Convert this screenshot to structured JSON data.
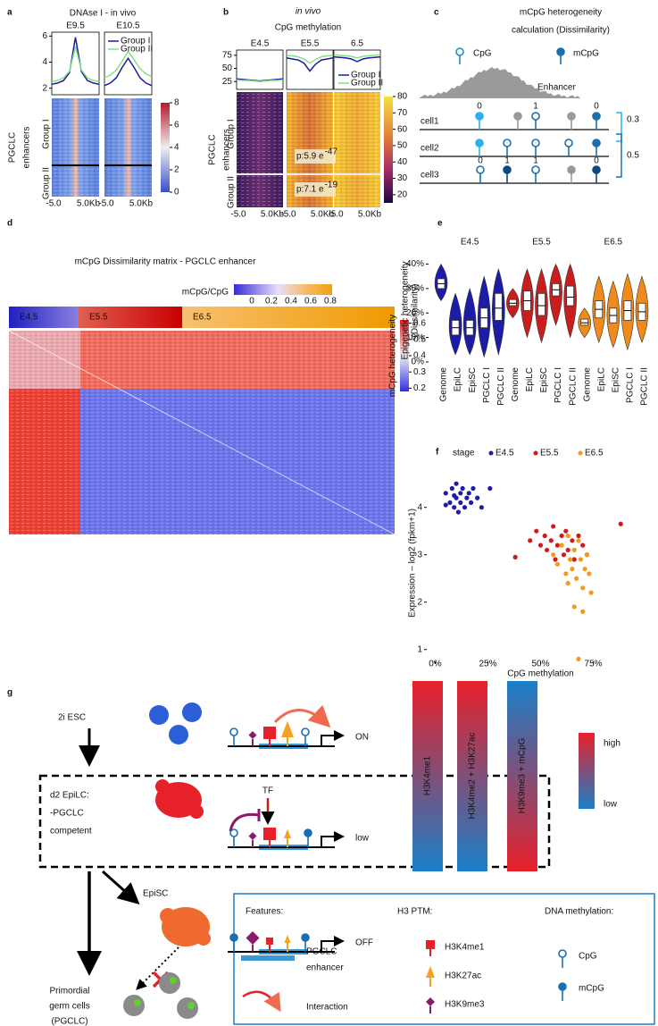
{
  "a": {
    "label": "a",
    "title": "DNAse I - in vivo",
    "ylabel": [
      "PGCLC",
      "enhancers"
    ],
    "group_labels": [
      "Group I",
      "Group II"
    ],
    "legend": [
      {
        "name": "Group I",
        "color": "#1c1c9c"
      },
      {
        "name": "Group II",
        "color": "#86e086"
      }
    ],
    "ylim": [
      1.5,
      6.3
    ],
    "yticks": [
      2,
      4,
      6
    ],
    "xticks": [
      "-5.0",
      "5.0Kb"
    ],
    "clim": [
      0,
      8
    ],
    "colorbar_ticks": [
      0,
      2,
      4,
      6,
      8
    ],
    "panels": [
      {
        "title": "E9.5",
        "values": [
          [
            2.3,
            2.4,
            2.6,
            3.2,
            5.9,
            3.3,
            2.6,
            2.4,
            2.3
          ],
          [
            2.5,
            2.6,
            2.8,
            3.3,
            5.2,
            3.4,
            2.8,
            2.6,
            2.5
          ]
        ]
      },
      {
        "title": "E10.5",
        "values": [
          [
            2.2,
            2.4,
            2.8,
            3.6,
            4.3,
            3.6,
            2.8,
            2.4,
            2.2
          ],
          [
            2.8,
            3.0,
            3.4,
            4.1,
            4.8,
            4.2,
            3.5,
            3.1,
            2.9
          ]
        ]
      }
    ]
  },
  "b": {
    "label": "b",
    "title": [
      "in vivo",
      "CpG methylation"
    ],
    "ylabel": [
      "PGCLC",
      "enhancers"
    ],
    "group_labels": [
      "Group I",
      "Group II"
    ],
    "legend": [
      {
        "name": "Group I",
        "color": "#1c1c9c"
      },
      {
        "name": "Group II",
        "color": "#86e086"
      }
    ],
    "ylim": [
      10,
      85
    ],
    "yticks": [
      25,
      50,
      75
    ],
    "xticks": [
      "-5.0",
      "5.0Kb"
    ],
    "clim": [
      15,
      80
    ],
    "colorbar_ticks": [
      20,
      30,
      40,
      50,
      60,
      70,
      80
    ],
    "p_values": [
      {
        "text": "p:5.9 e",
        "exp": "-47"
      },
      {
        "text": "p:7.1 e",
        "exp": "-19"
      }
    ],
    "panels": [
      {
        "title": "E4.5",
        "values": [
          [
            30,
            29,
            28,
            27,
            26,
            27,
            28,
            29,
            30
          ],
          [
            28,
            27,
            27,
            26,
            25,
            26,
            27,
            27,
            28
          ]
        ]
      },
      {
        "title": "E5.5",
        "values": [
          [
            70,
            68,
            66,
            60,
            45,
            58,
            66,
            68,
            70
          ],
          [
            75,
            74,
            72,
            68,
            60,
            67,
            72,
            74,
            75
          ]
        ]
      },
      {
        "title": "6.5",
        "values": [
          [
            72,
            71,
            70,
            68,
            63,
            68,
            70,
            71,
            72
          ],
          [
            76,
            75,
            74,
            73,
            70,
            73,
            74,
            75,
            76
          ]
        ]
      }
    ]
  },
  "c": {
    "label": "c",
    "title": [
      "mCpG heterogeneity",
      "calculation (Dissimilarity)"
    ],
    "legend": [
      "CpG",
      "mCpG"
    ],
    "enhancer": "Enhancer",
    "cells": [
      "cell1",
      "cell2",
      "cell3"
    ],
    "cell1_values": [
      0,
      1,
      0
    ],
    "cell3_values": [
      0,
      1,
      1,
      0
    ],
    "dissimilarity": [
      0.3,
      0.5
    ]
  },
  "d": {
    "label": "d",
    "title": "mCpG Dissimilarity matrix - PGCLC enhancer",
    "colorbar_title": "mCpG/CpG",
    "colorbar_ticks": [
      0,
      0.2,
      0.4,
      0.6,
      0.8
    ],
    "stages": [
      "E4.5",
      "E5.5",
      "E6.5"
    ],
    "heat_title": "mCpG heterogeneity",
    "heat_clim": [
      0.18,
      0.62
    ],
    "heat_ticks": [
      0.2,
      0.3,
      0.4,
      0.5,
      0.6
    ]
  },
  "chart_data": [
    {
      "panel": "e",
      "type": "violin",
      "ylabel": [
        "Epigenetic heterogeneity",
        "(Dissimilarity)"
      ],
      "categories": [
        "Genome",
        "EpiLC",
        "EpiSC",
        "PGCLC I",
        "PGCLC II"
      ],
      "ylim": [
        0,
        42
      ],
      "yticks": [
        {
          "value": 0,
          "label": "0%"
        },
        {
          "value": 10,
          "label": "10%"
        },
        {
          "value": 20,
          "label": "20%"
        },
        {
          "value": 30,
          "label": "30%"
        },
        {
          "value": 40,
          "label": "40%"
        }
      ],
      "series": [
        {
          "name": "E4.5",
          "color": "#1c1ca8",
          "median": [
            32,
            14,
            14,
            18,
            22
          ],
          "q1": [
            30,
            11,
            11,
            14,
            17
          ],
          "q3": [
            34,
            17,
            17,
            22,
            28
          ],
          "min": [
            25,
            3,
            3,
            2,
            3
          ],
          "max": [
            40,
            28,
            30,
            35,
            38
          ]
        },
        {
          "name": "E5.5",
          "color": "#c81e1e",
          "median": [
            24,
            25,
            23,
            29.5,
            26.5
          ],
          "q1": [
            23,
            21,
            19,
            27,
            23
          ],
          "q3": [
            25.5,
            29,
            28,
            32,
            31
          ],
          "min": [
            18,
            10,
            8,
            15,
            10
          ],
          "max": [
            30,
            38,
            38,
            40,
            40
          ]
        },
        {
          "name": "E6.5",
          "color": "#f08a1a",
          "median": [
            16,
            21.5,
            19,
            21,
            20.5
          ],
          "q1": [
            15,
            18,
            16,
            17,
            17
          ],
          "q3": [
            17.5,
            25,
            22,
            25,
            24
          ],
          "min": [
            10,
            8,
            6,
            5,
            8
          ],
          "max": [
            22,
            35,
            33,
            36,
            35
          ]
        }
      ]
    },
    {
      "panel": "f",
      "type": "scatter",
      "legend_title": "stage",
      "xlabel": "CpG methylation",
      "ylabel": "Expression – log2 (fpkm+1)",
      "xlim": [
        -4,
        104
      ],
      "ylim": [
        0.75,
        4.9
      ],
      "xticks": [
        {
          "value": 0,
          "label": "0%"
        },
        {
          "value": 25,
          "label": "25%"
        },
        {
          "value": 50,
          "label": "50%"
        },
        {
          "value": 75,
          "label": "75%"
        }
      ],
      "yticks": [
        1,
        2,
        3,
        4
      ],
      "series": [
        {
          "name": "E4.5",
          "color": "#1c1ca8",
          "x": [
            5,
            7,
            8,
            9,
            10,
            10,
            11,
            12,
            12,
            13,
            14,
            15,
            16,
            17,
            18,
            20,
            22,
            26,
            5,
            9
          ],
          "values": [
            4.3,
            4.1,
            4.4,
            4.0,
            4.2,
            4.5,
            3.9,
            4.3,
            4.1,
            4.4,
            4.0,
            4.2,
            4.3,
            4.1,
            4.4,
            4.2,
            4.0,
            4.4,
            4.05,
            4.25
          ]
        },
        {
          "name": "E5.5",
          "color": "#d11a1a",
          "x": [
            38,
            45,
            48,
            50,
            52,
            53,
            55,
            56,
            57,
            58,
            60,
            61,
            62,
            63,
            65,
            66,
            68,
            70,
            72,
            88
          ],
          "values": [
            2.95,
            3.3,
            3.5,
            3.2,
            3.4,
            3.1,
            3.3,
            3.6,
            2.9,
            3.2,
            3.4,
            3.0,
            3.5,
            3.1,
            3.3,
            2.9,
            3.4,
            3.2,
            3.0,
            3.65
          ]
        },
        {
          "name": "E6.5",
          "color": "#f39a1e",
          "x": [
            56,
            58,
            60,
            62,
            63,
            64,
            65,
            66,
            67,
            68,
            69,
            70,
            70,
            71,
            72,
            73,
            74,
            68,
            66,
            63
          ],
          "values": [
            3.0,
            2.8,
            3.2,
            2.6,
            3.4,
            2.9,
            2.7,
            3.1,
            2.5,
            3.3,
            2.9,
            2.3,
            1.8,
            2.7,
            3.0,
            2.6,
            2.2,
            0.8,
            1.9,
            2.4
          ]
        }
      ]
    }
  ],
  "g": {
    "label": "g",
    "esc": "2i ESC",
    "on": "ON",
    "epilc": [
      "d2 EpiLC:",
      "-PGCLC",
      "competent"
    ],
    "tf": "TF",
    "low_state": "low",
    "episc": "EpiSC",
    "off": "OFF",
    "pgc": [
      "Primordial",
      "germ cells",
      "(PGCLC)"
    ],
    "bars": [
      "H3K4me1",
      "H3K4me2 + H3K27ac",
      "H3K9me3 + mCpG"
    ],
    "scale": [
      "high",
      "low"
    ],
    "legend": {
      "features": "Features:",
      "enhancer": [
        "PGCLC",
        "enhancer"
      ],
      "interaction": "Interaction",
      "ptm_title": "H3 PTM:",
      "ptm": [
        "H3K4me1",
        "H3K27ac",
        "H3K9me3"
      ],
      "dna_title": "DNA methylation:",
      "dna": [
        "CpG",
        "mCpG"
      ]
    }
  }
}
